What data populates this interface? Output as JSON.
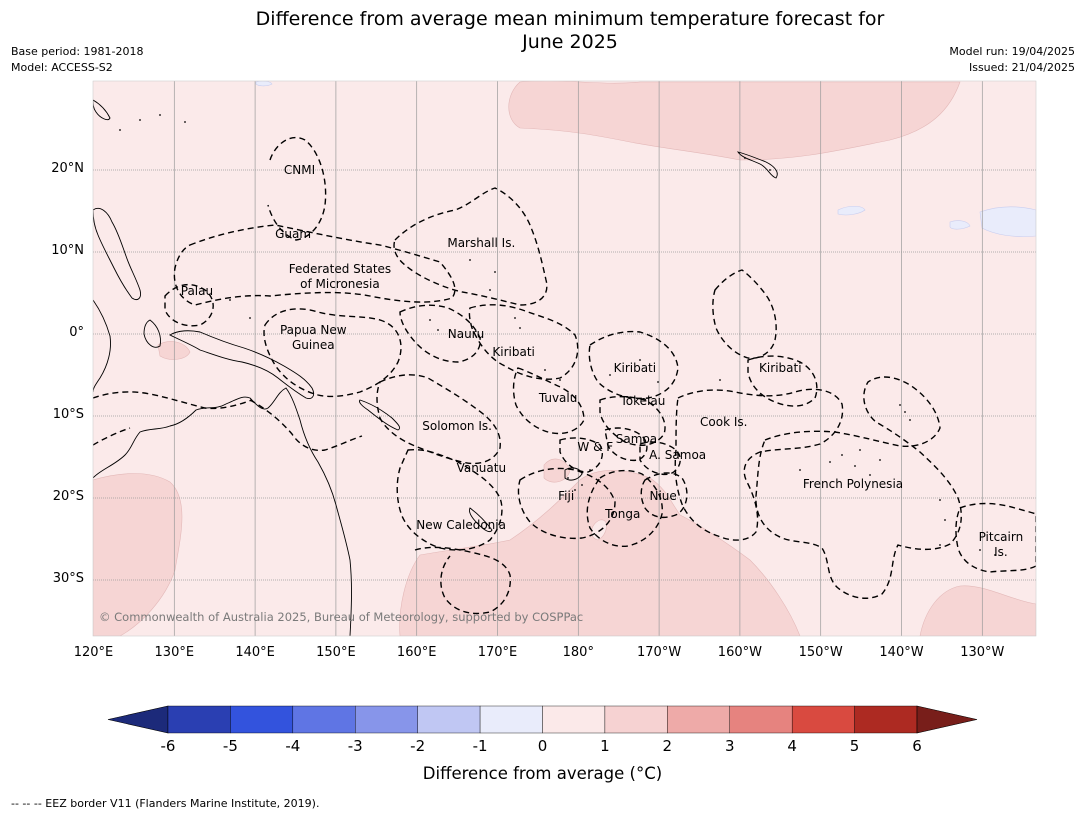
{
  "title_line1": "Difference from average mean minimum temperature forecast for",
  "title_line2": "June 2025",
  "meta_left": [
    "Base period: 1981-2018",
    "Model: ACCESS-S2"
  ],
  "meta_right": [
    "Model run: 19/04/2025",
    "Issued: 21/04/2025"
  ],
  "credit": "© Commonwealth of Australia 2025, Bureau of Meteorology, supported by COSPPac",
  "lat_labels": [
    "20°N",
    "10°N",
    "0°",
    "10°S",
    "20°S",
    "30°S"
  ],
  "lon_labels": [
    "120°E",
    "130°E",
    "140°E",
    "150°E",
    "160°E",
    "170°E",
    "180°",
    "170°W",
    "160°W",
    "150°W",
    "140°W",
    "130°W"
  ],
  "regions": [
    {
      "name": "CNMI",
      "lon": 145.5,
      "lat": 20
    },
    {
      "name": "Guam",
      "lon": 144.7,
      "lat": 12.1
    },
    {
      "name": "Marshall Is.",
      "lon": 168,
      "lat": 11
    },
    {
      "name": "Federated States\nof Micronesia",
      "lon": 150.5,
      "lat": 7
    },
    {
      "name": "Palau",
      "lon": 132.8,
      "lat": 5.2
    },
    {
      "name": "Papua New\nGuinea",
      "lon": 147.2,
      "lat": -0.5
    },
    {
      "name": "Nauru",
      "lon": 166.1,
      "lat": 0
    },
    {
      "name": "Kiribati",
      "lon": 172,
      "lat": -2.2
    },
    {
      "name": "Kiribati",
      "lon": -173,
      "lat": -4.2
    },
    {
      "name": "Kiribati",
      "lon": -155,
      "lat": -4.2
    },
    {
      "name": "Tuvalu",
      "lon": 177.5,
      "lat": -7.9
    },
    {
      "name": "Tokelau",
      "lon": -172,
      "lat": -8.2
    },
    {
      "name": "Cook Is.",
      "lon": -162,
      "lat": -10.8
    },
    {
      "name": "Solomon Is.",
      "lon": 165,
      "lat": -11.3
    },
    {
      "name": "Samoa",
      "lon": -172.8,
      "lat": -12.9
    },
    {
      "name": "W & F",
      "lon": -177.9,
      "lat": -13.8
    },
    {
      "name": "A. Samoa",
      "lon": -167.7,
      "lat": -14.8
    },
    {
      "name": "Vanuatu",
      "lon": 168,
      "lat": -16.4
    },
    {
      "name": "French Polynesia",
      "lon": -146,
      "lat": -18.3
    },
    {
      "name": "Fiji",
      "lon": 178.5,
      "lat": -19.8
    },
    {
      "name": "Niue",
      "lon": -169.5,
      "lat": -19.8
    },
    {
      "name": "Tonga",
      "lon": -174.5,
      "lat": -22
    },
    {
      "name": "New Caledonia",
      "lon": 165.5,
      "lat": -23.3
    },
    {
      "name": "Pitcairn\nIs.",
      "lon": -127.7,
      "lat": -25.7
    }
  ],
  "colorbar": {
    "ticks": [
      "-6",
      "-5",
      "-4",
      "-3",
      "-2",
      "-1",
      "0",
      "1",
      "2",
      "3",
      "4",
      "5",
      "6"
    ],
    "colors": [
      "#1c2a7a",
      "#2a3fb2",
      "#3353dd",
      "#5f75e4",
      "#8795ea",
      "#c0c7f3",
      "#e9ecfb",
      "#fbe9e9",
      "#f6d2d2",
      "#eeaaa8",
      "#e6837f",
      "#d94a40",
      "#ad2a22",
      "#781e1a"
    ],
    "label": "Difference from average (°C)"
  },
  "footnote": "--  --  -- EEZ border V11 (Flanders Marine Institute, 2019)."
}
